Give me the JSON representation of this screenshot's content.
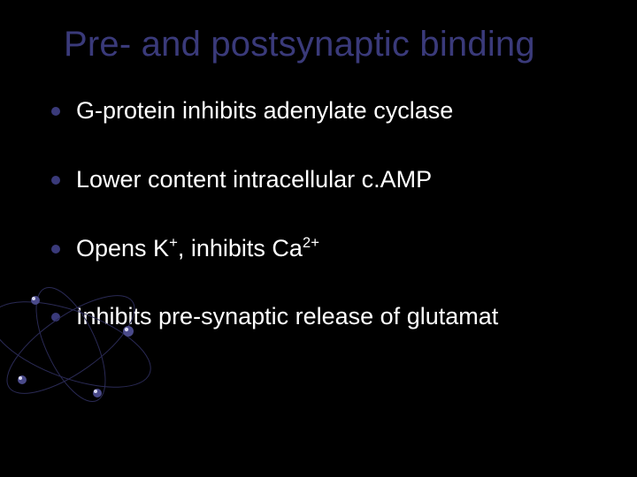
{
  "slide": {
    "title": "Pre- and postsynaptic binding",
    "title_color": "#3a3a7a",
    "title_fontsize": 40,
    "background_color": "#000000",
    "bullet_color": "#3a3a7a",
    "text_color": "#ffffff",
    "bullet_fontsize": 27,
    "bullets": [
      {
        "html": "G-protein inhibits adenylate cyclase"
      },
      {
        "html": "Lower content intracellular c.AMP"
      },
      {
        "html": "Opens K<sup>+</sup>, inhibits Ca<sup>2+</sup>"
      },
      {
        "html": "Inhibits pre-synaptic release of glutamat"
      }
    ],
    "decoration": {
      "type": "atom-orbits",
      "orbit_stroke": "#2a2a55",
      "orbit_stroke_width": 1,
      "dot_color": "#4a4a8a",
      "dot_highlight": "#d8d8f0"
    }
  }
}
